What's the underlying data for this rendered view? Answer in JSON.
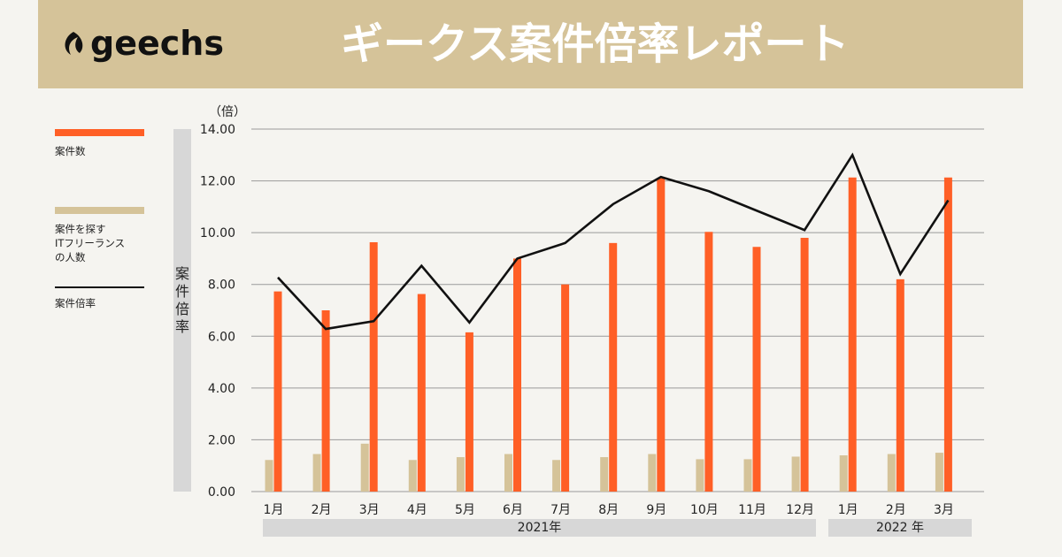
{
  "header": {
    "logo_text": "geechs",
    "title": "ギークス案件倍率レポート"
  },
  "legend": {
    "items": [
      {
        "label": "案件数",
        "color": "#ff5f26",
        "kind": "bar"
      },
      {
        "label": "案件を探す\nITフリーランス\nの人数",
        "color": "#d5c399",
        "kind": "bar"
      },
      {
        "label": "案件倍率",
        "color": "#111111",
        "kind": "line"
      }
    ]
  },
  "axis": {
    "y_title": "案件倍率",
    "y_unit": "（倍）",
    "y_ticks": [
      "14.00",
      "12.00",
      "10.00",
      "8.00",
      "6.00",
      "4.00",
      "2.00",
      "0.00"
    ],
    "years": [
      {
        "label": "2021年"
      },
      {
        "label": "2022 年"
      }
    ]
  },
  "chart_data": {
    "type": "bar",
    "categories": [
      "1月",
      "2月",
      "3月",
      "4月",
      "5月",
      "6月",
      "7月",
      "8月",
      "9月",
      "10月",
      "11月",
      "12月",
      "1月",
      "2月",
      "3月"
    ],
    "ylim": [
      0,
      14
    ],
    "grid": true,
    "legend_position": "left",
    "ylabel": "案件倍率",
    "series": [
      {
        "name": "案件数",
        "kind": "bar",
        "color": "#ff5f26",
        "values": [
          7.73,
          7.0,
          9.63,
          7.63,
          6.15,
          9.0,
          8.0,
          9.6,
          12.1,
          10.03,
          9.45,
          9.8,
          12.13,
          8.2,
          12.13
        ]
      },
      {
        "name": "案件を探すITフリーランスの人数",
        "kind": "bar",
        "color": "#d5c399",
        "values": [
          1.22,
          1.45,
          1.85,
          1.22,
          1.33,
          1.45,
          1.22,
          1.33,
          1.45,
          1.25,
          1.25,
          1.35,
          1.4,
          1.45,
          1.5
        ]
      },
      {
        "name": "案件倍率",
        "kind": "line",
        "color": "#111111",
        "values": [
          8.27,
          6.28,
          6.58,
          8.72,
          6.53,
          9.0,
          9.6,
          11.1,
          12.15,
          11.6,
          10.85,
          10.1,
          13.0,
          8.4,
          11.25
        ]
      }
    ]
  }
}
